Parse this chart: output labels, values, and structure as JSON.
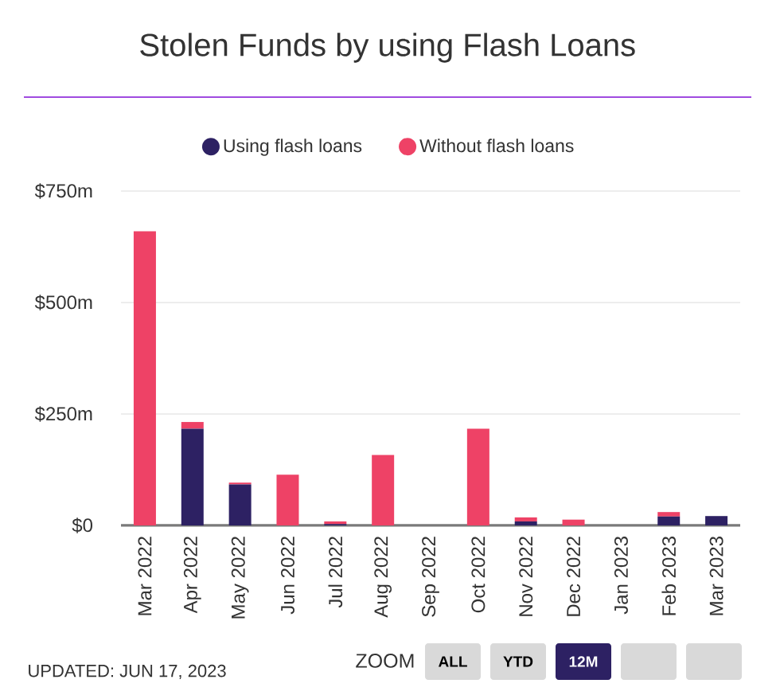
{
  "chart_data": {
    "type": "bar",
    "title": "Stolen Funds by using Flash Loans",
    "stacked": true,
    "categories": [
      "Mar 2022",
      "Apr 2022",
      "May 2022",
      "Jun 2022",
      "Jul 2022",
      "Aug 2022",
      "Sep 2022",
      "Oct 2022",
      "Nov 2022",
      "Dec 2022",
      "Jan 2023",
      "Feb 2023",
      "Mar 2023"
    ],
    "series": [
      {
        "name": "Using flash loans",
        "color": "#2d2163",
        "values": [
          0,
          217,
          92,
          0,
          3,
          0,
          0,
          0,
          9,
          0,
          0,
          20,
          21
        ]
      },
      {
        "name": "Without flash loans",
        "color": "#ee4266",
        "values": [
          660,
          15,
          4,
          114,
          6,
          158,
          0,
          217,
          9,
          13,
          0,
          10,
          0
        ]
      }
    ],
    "ylim": [
      0,
      750
    ],
    "yticks": [
      {
        "value": 0,
        "label": "$0"
      },
      {
        "value": 250,
        "label": "$250m"
      },
      {
        "value": 500,
        "label": "$500m"
      },
      {
        "value": 750,
        "label": "$750m"
      }
    ],
    "grid": "y",
    "legend": "top",
    "annotations": [
      "UPDATED: JUN 17, 2023",
      "ZOOM",
      "ALL",
      "YTD",
      "12M"
    ]
  }
}
